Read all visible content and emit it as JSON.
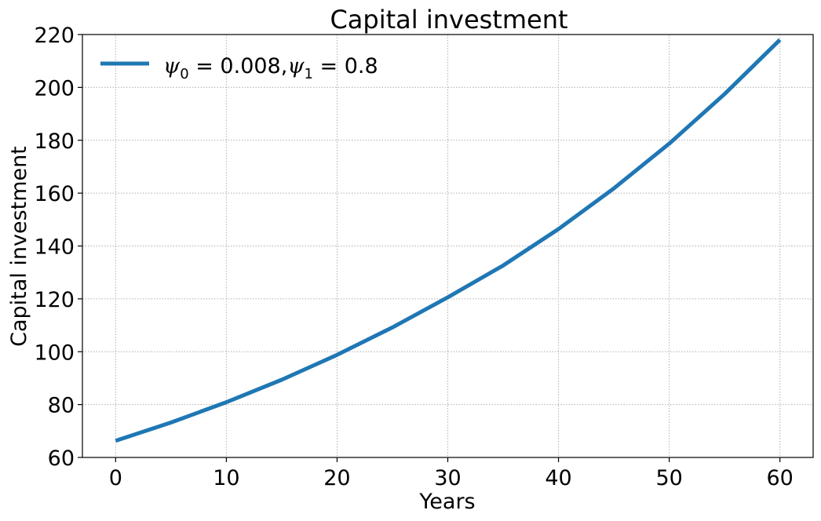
{
  "chart_data": {
    "type": "line",
    "title": "Capital investment",
    "xlabel": "Years",
    "ylabel": "Capital investment",
    "xlim": [
      -3,
      63
    ],
    "ylim": [
      60,
      220
    ],
    "xticks": [
      0,
      10,
      20,
      30,
      40,
      50,
      60
    ],
    "yticks": [
      60,
      80,
      100,
      120,
      140,
      160,
      180,
      200,
      220
    ],
    "grid": true,
    "legend_position": "top-left",
    "series": [
      {
        "name": "ψ0 = 0.008,ψ1 = 0.8",
        "name_parts": {
          "sym": "ψ",
          "sub0": "0",
          "val0": " = 0.008,",
          "sub1": "1",
          "val1": " = 0.8"
        },
        "color": "#1f77b4",
        "x": [
          0,
          5,
          10,
          15,
          20,
          25,
          30,
          35,
          40,
          45,
          50,
          55,
          60
        ],
        "y": [
          66.3,
          73.2,
          80.9,
          89.4,
          98.8,
          109.2,
          120.6,
          132.6,
          146.4,
          161.8,
          178.7,
          197.5,
          218.0
        ]
      }
    ]
  }
}
